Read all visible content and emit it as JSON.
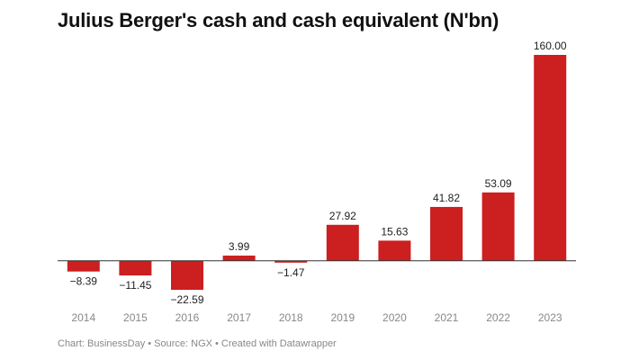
{
  "chart_data": {
    "type": "bar",
    "title": "Julius Berger's cash and cash equivalent (N'bn)",
    "categories": [
      "2014",
      "2015",
      "2016",
      "2017",
      "2018",
      "2019",
      "2020",
      "2021",
      "2022",
      "2023"
    ],
    "values": [
      -8.39,
      -11.45,
      -22.59,
      3.99,
      -1.47,
      27.92,
      15.63,
      41.82,
      53.09,
      160.0
    ],
    "value_labels": [
      "−8.39",
      "−11.45",
      "−22.59",
      "3.99",
      "−1.47",
      "27.92",
      "15.63",
      "41.82",
      "53.09",
      "160.00"
    ],
    "xlabel": "",
    "ylabel": "",
    "ylim": [
      -22.59,
      160.0
    ],
    "grid": false,
    "bar_color": "#cc1f1f",
    "source": "Chart: BusinessDay • Source: NGX • Created with Datawrapper"
  }
}
